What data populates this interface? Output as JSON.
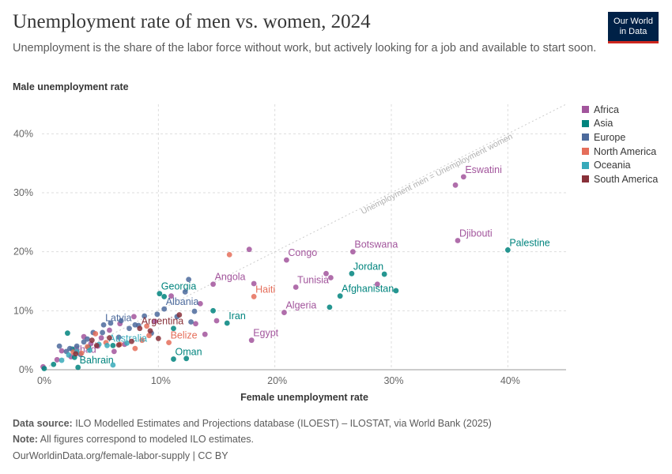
{
  "header": {
    "title": "Unemployment rate of men vs. women, 2024",
    "subtitle": "Unemployment is the share of the labor force without work, but actively looking for a job and available to start soon.",
    "logo_line1": "Our World",
    "logo_line2": "in Data"
  },
  "footer": {
    "source_label": "Data source:",
    "source_text": "ILO Modelled Estimates and Projections database (ILOEST) – ILOSTAT, via World Bank (2025)",
    "note_label": "Note:",
    "note_text": "All figures correspond to modeled ILO estimates.",
    "url": "OurWorldinData.org/female-labor-supply | CC BY"
  },
  "colors": {
    "Africa": "#a2559c",
    "Asia": "#00847e",
    "Europe": "#4c6a9c",
    "North America": "#e56e5a",
    "Oceania": "#38aaba",
    "South America": "#883039"
  },
  "chart_data": {
    "type": "scatter",
    "title": "Unemployment rate of men vs. women, 2024",
    "xlabel": "Female unemployment rate",
    "ylabel": "Male unemployment rate",
    "xlim": [
      0,
      45
    ],
    "ylim": [
      0,
      45
    ],
    "x_ticks": [
      0,
      10,
      20,
      30,
      40
    ],
    "y_ticks": [
      0,
      10,
      20,
      30,
      40
    ],
    "x_tick_labels": [
      "0%",
      "10%",
      "20%",
      "30%",
      "40%"
    ],
    "y_tick_labels": [
      "0%",
      "10%",
      "20%",
      "30%",
      "40%"
    ],
    "grid": true,
    "legend_position": "right",
    "reference_line_label": "Unemployment men = Unemployment women",
    "series": [
      {
        "name": "Africa",
        "points": [
          {
            "x": 35.5,
            "y": 31.3
          },
          {
            "x": 36.2,
            "y": 32.7,
            "label": "Eswatini"
          },
          {
            "x": 35.7,
            "y": 21.9,
            "label": "Djibouti"
          },
          {
            "x": 26.7,
            "y": 20.0,
            "label": "Botswana"
          },
          {
            "x": 21.0,
            "y": 18.6,
            "label": "Congo"
          },
          {
            "x": 14.7,
            "y": 14.5,
            "label": "Angola"
          },
          {
            "x": 21.8,
            "y": 14.0,
            "label": "Tunisia"
          },
          {
            "x": 24.4,
            "y": 16.3
          },
          {
            "x": 24.8,
            "y": 15.6
          },
          {
            "x": 28.8,
            "y": 14.5
          },
          {
            "x": 20.8,
            "y": 9.7,
            "label": "Algeria"
          },
          {
            "x": 18.0,
            "y": 5.0,
            "label": "Egypt"
          },
          {
            "x": 18.2,
            "y": 14.6
          },
          {
            "x": 17.8,
            "y": 20.4
          },
          {
            "x": 15.0,
            "y": 8.3
          },
          {
            "x": 13.6,
            "y": 11.2
          },
          {
            "x": 13.2,
            "y": 7.8
          },
          {
            "x": 11.1,
            "y": 12.5
          },
          {
            "x": 14.0,
            "y": 6.0
          },
          {
            "x": 7.9,
            "y": 9.0
          },
          {
            "x": 6.7,
            "y": 7.8
          },
          {
            "x": 5.8,
            "y": 6.7
          },
          {
            "x": 5.1,
            "y": 5.4
          },
          {
            "x": 4.2,
            "y": 4.4
          },
          {
            "x": 3.6,
            "y": 5.6
          },
          {
            "x": 3.0,
            "y": 3.4
          },
          {
            "x": 2.5,
            "y": 2.2,
            "label": "Chad"
          },
          {
            "x": 1.7,
            "y": 3.2
          },
          {
            "x": 1.3,
            "y": 1.7
          },
          {
            "x": 0.1,
            "y": 0.5
          },
          {
            "x": 4.8,
            "y": 4.0
          },
          {
            "x": 6.2,
            "y": 3.1
          },
          {
            "x": 7.1,
            "y": 4.3
          },
          {
            "x": 9.7,
            "y": 8.2
          }
        ]
      },
      {
        "name": "Asia",
        "points": [
          {
            "x": 40.0,
            "y": 20.3,
            "label": "Palestine"
          },
          {
            "x": 26.6,
            "y": 16.3,
            "label": "Jordan"
          },
          {
            "x": 29.4,
            "y": 16.2
          },
          {
            "x": 25.6,
            "y": 12.5,
            "label": "Afghanistan"
          },
          {
            "x": 30.4,
            "y": 13.4
          },
          {
            "x": 24.7,
            "y": 10.6
          },
          {
            "x": 15.9,
            "y": 7.9,
            "label": "Iran"
          },
          {
            "x": 14.7,
            "y": 10.0
          },
          {
            "x": 10.1,
            "y": 12.9,
            "label": "Georgia"
          },
          {
            "x": 10.5,
            "y": 12.4
          },
          {
            "x": 11.3,
            "y": 1.8,
            "label": "Oman"
          },
          {
            "x": 12.4,
            "y": 1.9
          },
          {
            "x": 11.3,
            "y": 7.0
          },
          {
            "x": 3.1,
            "y": 0.4,
            "label": "Bahrain"
          },
          {
            "x": 0.2,
            "y": 0.2
          },
          {
            "x": 1.0,
            "y": 0.9
          },
          {
            "x": 2.2,
            "y": 6.2
          },
          {
            "x": 2.6,
            "y": 3.5
          },
          {
            "x": 4.0,
            "y": 3.8
          },
          {
            "x": 6.1,
            "y": 4.1
          },
          {
            "x": 2.8,
            "y": 2.1
          }
        ]
      },
      {
        "name": "Europe",
        "points": [
          {
            "x": 10.5,
            "y": 10.3,
            "label": "Albania"
          },
          {
            "x": 12.6,
            "y": 15.3
          },
          {
            "x": 12.3,
            "y": 13.2
          },
          {
            "x": 13.1,
            "y": 9.9
          },
          {
            "x": 12.8,
            "y": 8.1
          },
          {
            "x": 11.6,
            "y": 9.0
          },
          {
            "x": 9.9,
            "y": 9.4
          },
          {
            "x": 8.8,
            "y": 9.1
          },
          {
            "x": 8.0,
            "y": 7.6
          },
          {
            "x": 7.5,
            "y": 7.0
          },
          {
            "x": 6.8,
            "y": 8.3
          },
          {
            "x": 5.9,
            "y": 7.9
          },
          {
            "x": 5.3,
            "y": 7.6,
            "label": "Latvia"
          },
          {
            "x": 5.2,
            "y": 6.3
          },
          {
            "x": 4.4,
            "y": 6.3
          },
          {
            "x": 3.9,
            "y": 5.2
          },
          {
            "x": 3.6,
            "y": 4.7
          },
          {
            "x": 3.0,
            "y": 4.0
          },
          {
            "x": 2.4,
            "y": 3.6
          },
          {
            "x": 2.1,
            "y": 3.1
          },
          {
            "x": 1.5,
            "y": 4.0
          },
          {
            "x": 6.6,
            "y": 5.5
          },
          {
            "x": 8.3,
            "y": 7.5
          },
          {
            "x": 9.4,
            "y": 6.2
          },
          {
            "x": 3.3,
            "y": 2.6
          }
        ]
      },
      {
        "name": "North America",
        "points": [
          {
            "x": 16.1,
            "y": 19.5
          },
          {
            "x": 18.2,
            "y": 12.4,
            "label": "Haiti"
          },
          {
            "x": 10.9,
            "y": 4.6,
            "label": "Belize"
          },
          {
            "x": 9.0,
            "y": 7.4
          },
          {
            "x": 8.6,
            "y": 5.0
          },
          {
            "x": 8.0,
            "y": 3.6
          },
          {
            "x": 6.7,
            "y": 4.3
          },
          {
            "x": 5.5,
            "y": 4.6
          },
          {
            "x": 4.6,
            "y": 6.1
          },
          {
            "x": 3.9,
            "y": 3.9
          },
          {
            "x": 3.4,
            "y": 2.8
          },
          {
            "x": 2.7,
            "y": 3.0
          },
          {
            "x": 9.2,
            "y": 5.8
          }
        ]
      },
      {
        "name": "Oceania",
        "points": [
          {
            "x": 5.6,
            "y": 4.1,
            "label": "Australia"
          },
          {
            "x": 4.9,
            "y": 4.3
          },
          {
            "x": 4.1,
            "y": 3.3
          },
          {
            "x": 3.0,
            "y": 3.1
          },
          {
            "x": 2.3,
            "y": 2.5
          },
          {
            "x": 1.7,
            "y": 1.6
          },
          {
            "x": 6.1,
            "y": 0.8
          },
          {
            "x": 7.3,
            "y": 4.5
          }
        ]
      },
      {
        "name": "South America",
        "points": [
          {
            "x": 8.4,
            "y": 7.0,
            "label": "Argentina"
          },
          {
            "x": 10.0,
            "y": 5.3
          },
          {
            "x": 9.3,
            "y": 6.6
          },
          {
            "x": 7.7,
            "y": 4.8
          },
          {
            "x": 6.6,
            "y": 4.2
          },
          {
            "x": 5.8,
            "y": 5.4
          },
          {
            "x": 4.7,
            "y": 4.1
          },
          {
            "x": 4.3,
            "y": 5.0
          },
          {
            "x": 2.9,
            "y": 2.7
          },
          {
            "x": 11.8,
            "y": 9.3
          }
        ]
      }
    ]
  }
}
